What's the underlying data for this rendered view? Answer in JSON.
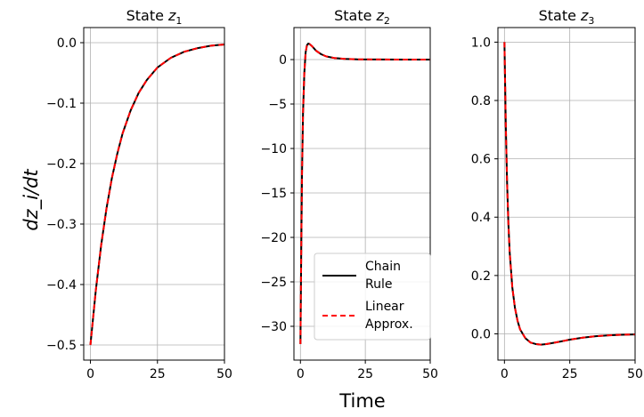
{
  "figure": {
    "xlabel": "Time",
    "ylabel": "dz_i/dt",
    "legend": {
      "placement": "lower-right of middle panel",
      "entries": [
        {
          "line1": "Chain",
          "line2": "Rule",
          "color": "#000000",
          "style": "solid"
        },
        {
          "line1": "Linear",
          "line2": "Approx.",
          "color": "#ff0000",
          "style": "dashed"
        }
      ]
    }
  },
  "chart_data": [
    {
      "type": "line",
      "title_prefix": "State ",
      "title_var": "z",
      "title_sub": "1",
      "xlim": [
        -2.5,
        50
      ],
      "ylim": [
        -0.525,
        0.025
      ],
      "xticks": [
        0,
        25,
        50
      ],
      "xtick_labels": [
        "0",
        "25",
        "50"
      ],
      "yticks": [
        -0.5,
        -0.4,
        -0.3,
        -0.2,
        -0.1,
        0.0
      ],
      "ytick_labels": [
        "−0.5",
        "−0.4",
        "−0.3",
        "−0.2",
        "−0.1",
        "0.0"
      ],
      "grid": true,
      "series": [
        {
          "name": "Chain Rule",
          "color": "#000000",
          "dash": "none",
          "x": [
            0,
            2,
            4,
            6,
            8,
            10,
            12,
            15,
            18,
            21,
            25,
            30,
            35,
            40,
            45,
            50
          ],
          "y": [
            -0.5,
            -0.41,
            -0.335,
            -0.274,
            -0.224,
            -0.184,
            -0.15,
            -0.112,
            -0.083,
            -0.062,
            -0.041,
            -0.025,
            -0.015,
            -0.009,
            -0.005,
            -0.003
          ]
        },
        {
          "name": "Linear Approx.",
          "color": "#ff0000",
          "dash": "dashed",
          "x": [
            0,
            2,
            4,
            6,
            8,
            10,
            12,
            15,
            18,
            21,
            25,
            30,
            35,
            40,
            45,
            50
          ],
          "y": [
            -0.5,
            -0.41,
            -0.335,
            -0.274,
            -0.224,
            -0.184,
            -0.15,
            -0.112,
            -0.083,
            -0.062,
            -0.041,
            -0.025,
            -0.015,
            -0.009,
            -0.005,
            -0.003
          ]
        }
      ]
    },
    {
      "type": "line",
      "title_prefix": "State ",
      "title_var": "z",
      "title_sub": "2",
      "xlim": [
        -2.5,
        50
      ],
      "ylim": [
        -33.8,
        3.6
      ],
      "xticks": [
        0,
        25,
        50
      ],
      "xtick_labels": [
        "0",
        "25",
        "50"
      ],
      "yticks": [
        -30,
        -25,
        -20,
        -15,
        -10,
        -5,
        0
      ],
      "ytick_labels": [
        "−30",
        "−25",
        "−20",
        "−15",
        "−10",
        "−5",
        "0"
      ],
      "grid": true,
      "series": [
        {
          "name": "Chain Rule",
          "color": "#000000",
          "dash": "none",
          "x": [
            0,
            0.3,
            0.6,
            1.0,
            1.5,
            2.0,
            2.5,
            3.0,
            3.5,
            4.5,
            6,
            8,
            10,
            13,
            17,
            22,
            30,
            40,
            50
          ],
          "y": [
            -32.0,
            -22.0,
            -13.0,
            -6.0,
            -1.5,
            0.8,
            1.6,
            1.8,
            1.75,
            1.5,
            1.0,
            0.6,
            0.35,
            0.18,
            0.08,
            0.03,
            0.01,
            0.0,
            0.0
          ]
        },
        {
          "name": "Linear Approx.",
          "color": "#ff0000",
          "dash": "dashed",
          "x": [
            0,
            0.3,
            0.6,
            1.0,
            1.5,
            2.0,
            2.5,
            3.0,
            3.5,
            4.5,
            6,
            8,
            10,
            13,
            17,
            22,
            30,
            40,
            50
          ],
          "y": [
            -32.0,
            -22.0,
            -13.0,
            -6.0,
            -1.5,
            0.8,
            1.6,
            1.8,
            1.75,
            1.5,
            1.0,
            0.6,
            0.35,
            0.18,
            0.08,
            0.03,
            0.01,
            0.0,
            0.0
          ]
        }
      ]
    },
    {
      "type": "line",
      "title_prefix": "State ",
      "title_var": "z",
      "title_sub": "3",
      "xlim": [
        -2.5,
        50
      ],
      "ylim": [
        -0.09,
        1.05
      ],
      "xticks": [
        0,
        25,
        50
      ],
      "xtick_labels": [
        "0",
        "25",
        "50"
      ],
      "yticks": [
        0.0,
        0.2,
        0.4,
        0.6,
        0.8,
        1.0
      ],
      "ytick_labels": [
        "0.0",
        "0.2",
        "0.4",
        "0.6",
        "0.8",
        "1.0"
      ],
      "grid": true,
      "series": [
        {
          "name": "Chain Rule",
          "color": "#000000",
          "dash": "none",
          "x": [
            0,
            0.5,
            1,
            1.5,
            2,
            3,
            4,
            5,
            6,
            8,
            10,
            12,
            14,
            16,
            18,
            21,
            25,
            30,
            35,
            40,
            45,
            50
          ],
          "y": [
            1.0,
            0.72,
            0.52,
            0.38,
            0.28,
            0.16,
            0.09,
            0.045,
            0.015,
            -0.015,
            -0.03,
            -0.035,
            -0.037,
            -0.035,
            -0.032,
            -0.027,
            -0.02,
            -0.013,
            -0.008,
            -0.005,
            -0.003,
            -0.002
          ]
        },
        {
          "name": "Linear Approx.",
          "color": "#ff0000",
          "dash": "dashed",
          "x": [
            0,
            0.5,
            1,
            1.5,
            2,
            3,
            4,
            5,
            6,
            8,
            10,
            12,
            14,
            16,
            18,
            21,
            25,
            30,
            35,
            40,
            45,
            50
          ],
          "y": [
            1.0,
            0.72,
            0.52,
            0.38,
            0.28,
            0.16,
            0.09,
            0.045,
            0.015,
            -0.015,
            -0.03,
            -0.035,
            -0.037,
            -0.035,
            -0.032,
            -0.027,
            -0.02,
            -0.013,
            -0.008,
            -0.005,
            -0.003,
            -0.002
          ]
        }
      ]
    }
  ]
}
